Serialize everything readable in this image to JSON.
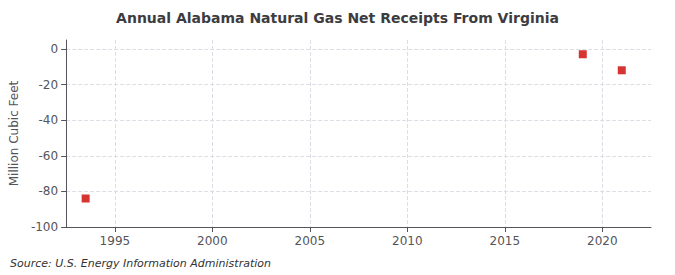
{
  "chart_data": {
    "type": "scatter",
    "title": "Annual Alabama Natural Gas Net Receipts From Virginia",
    "ylabel": "Million Cubic Feet",
    "source": "Source: U.S. Energy Information Administration",
    "x": [
      1993.5,
      2019,
      2021
    ],
    "values": [
      -84,
      -3,
      -12
    ],
    "color": "#cc0000",
    "marker": "square",
    "xlim": [
      1992.5,
      2022.5
    ],
    "xticks": [
      1995,
      2000,
      2005,
      2010,
      2015,
      2020
    ],
    "ylim": [
      -100,
      5
    ],
    "yticks": [
      0,
      -20,
      -40,
      -60,
      -80,
      -100
    ],
    "grid": true
  }
}
